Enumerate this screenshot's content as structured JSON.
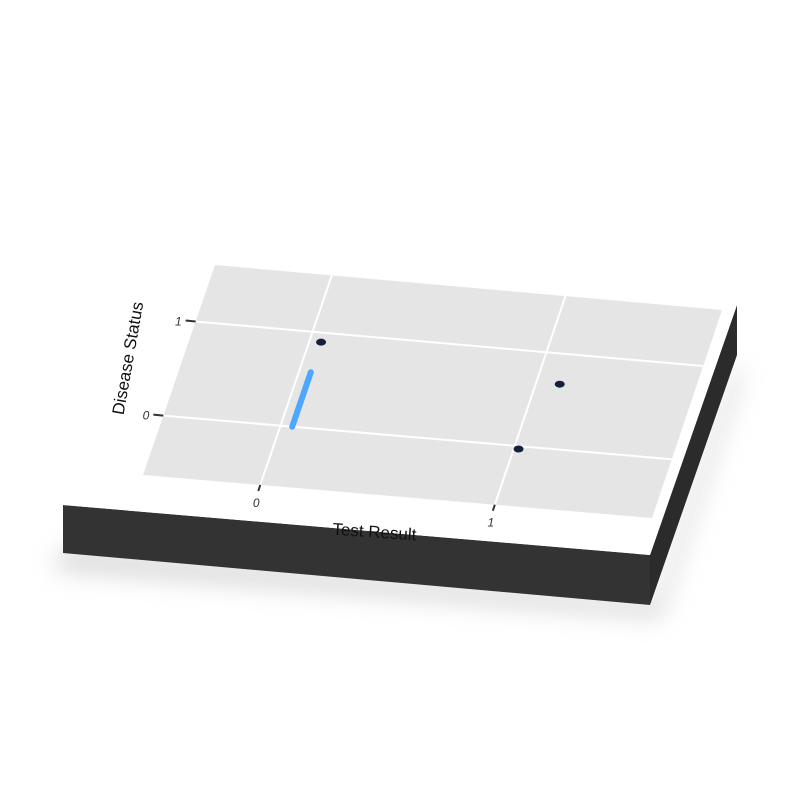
{
  "chart_data": {
    "type": "scatter",
    "title": "",
    "xlabel": "Test Result",
    "ylabel": "Disease Status",
    "xlim": [
      -0.5,
      1.67
    ],
    "ylim": [
      -0.63,
      1.6
    ],
    "x_ticks": [
      "0",
      "1"
    ],
    "y_ticks": [
      "0",
      "1"
    ],
    "grid": true,
    "points": [
      {
        "x": 0.05,
        "y": 0.9
      },
      {
        "x": 1.1,
        "y": 0.68
      },
      {
        "x": 1.02,
        "y": -0.03
      }
    ],
    "segments": [
      {
        "x": 0.05,
        "y0": 0.0,
        "y1": 0.58
      }
    ]
  },
  "colors": {
    "panel": "#e5e5e5",
    "grid": "#ffffff",
    "base_face": "#333333",
    "point": "#14213d",
    "segment": "#4da6ff"
  }
}
